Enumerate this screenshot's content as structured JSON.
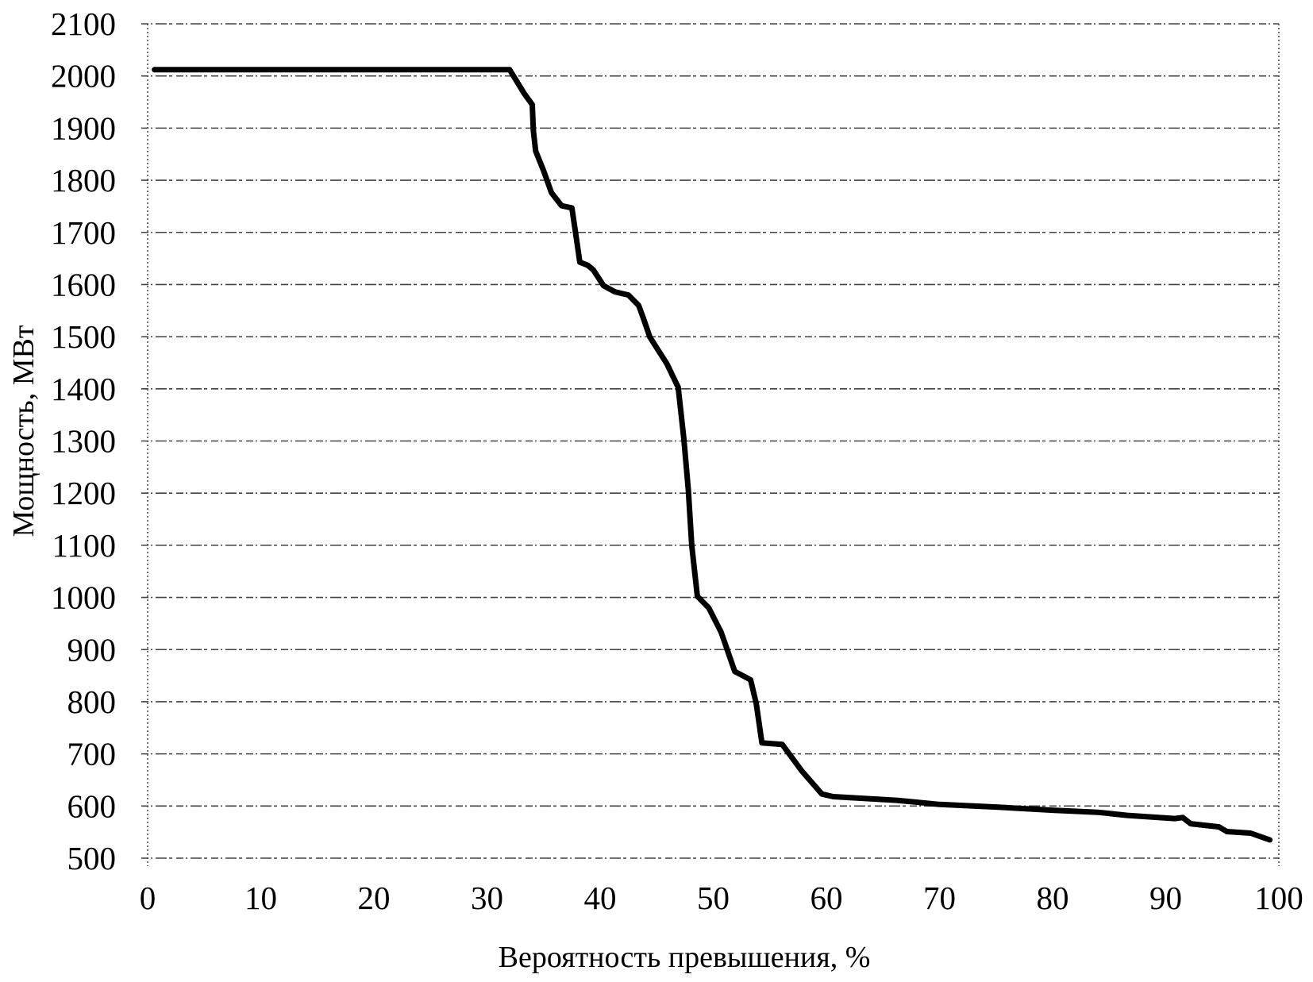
{
  "chart_data": {
    "type": "line",
    "title": "",
    "xlabel": "Вероятность превышения, %",
    "ylabel": "Мощность, МВт",
    "xlim": [
      0,
      100
    ],
    "ylim": [
      500,
      2100
    ],
    "xticks": [
      0,
      10,
      20,
      30,
      40,
      50,
      60,
      70,
      80,
      90,
      100
    ],
    "yticks": [
      500,
      600,
      700,
      800,
      900,
      1000,
      1100,
      1200,
      1300,
      1400,
      1500,
      1600,
      1700,
      1800,
      1900,
      2000,
      2100
    ],
    "grid": {
      "horizontal": true,
      "vertical": false,
      "style": "dashed"
    },
    "legend": null,
    "series": [
      {
        "name": "Мощность",
        "color": "#000000",
        "x": [
          0.6,
          10,
          20,
          30,
          32.0,
          33.3,
          34.0,
          34.1,
          34.3,
          35.0,
          35.7,
          36.6,
          37.5,
          37.8,
          38.2,
          38.9,
          39.4,
          40.3,
          41.3,
          42.5,
          43.4,
          43.8,
          44.4,
          45.9,
          46.9,
          47.4,
          47.8,
          48.1,
          48.6,
          49.6,
          50.7,
          51.9,
          53.3,
          53.8,
          54.3,
          56.1,
          57.8,
          59.6,
          60.6,
          66.2,
          70,
          75,
          80,
          84,
          86.6,
          90.8,
          91.5,
          92.2,
          94.7,
          95.4,
          97.5,
          99.2
        ],
        "y": [
          2012,
          2012,
          2012,
          2012,
          2012,
          1966,
          1945,
          1895,
          1856,
          1818,
          1776,
          1751,
          1747,
          1704,
          1643,
          1637,
          1628,
          1598,
          1586,
          1580,
          1560,
          1537,
          1499,
          1448,
          1403,
          1305,
          1206,
          1100,
          1002,
          980,
          933,
          858,
          842,
          797,
          721,
          718,
          668,
          623,
          618,
          611,
          603,
          598,
          592,
          588,
          582,
          576,
          578,
          566,
          560,
          551,
          548,
          535
        ]
      }
    ]
  }
}
